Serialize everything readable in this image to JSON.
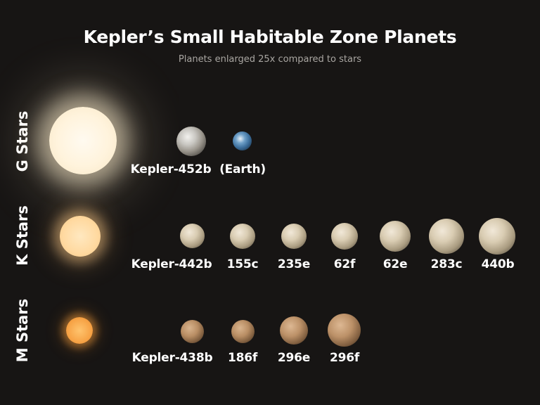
{
  "title": "Kepler’s Small Habitable Zone Planets",
  "subtitle": "Planets enlarged 25x compared to stars",
  "rows": [
    {
      "label": "G Stars",
      "star_color": "#fff3dc",
      "star_glow": "#fff0cf",
      "planets": [
        {
          "label": "Kepler-452b",
          "look": "rocky"
        },
        {
          "label": "(Earth)",
          "look": "earth"
        }
      ]
    },
    {
      "label": "K Stars",
      "star_color": "#ffd9a0",
      "star_glow": "#ffcf8c",
      "planets": [
        {
          "label": "Kepler-442b",
          "look": "tan"
        },
        {
          "label": "155c",
          "look": "tan"
        },
        {
          "label": "235e",
          "look": "tan"
        },
        {
          "label": "62f",
          "look": "tan"
        },
        {
          "label": "62e",
          "look": "tan"
        },
        {
          "label": "283c",
          "look": "tan"
        },
        {
          "label": "440b",
          "look": "tan"
        }
      ]
    },
    {
      "label": "M Stars",
      "star_color": "#f7a447",
      "star_glow": "#f6a03e",
      "planets": [
        {
          "label": "Kepler-438b",
          "look": "brown"
        },
        {
          "label": "186f",
          "look": "brown"
        },
        {
          "label": "296e",
          "look": "brown"
        },
        {
          "label": "296f",
          "look": "brown"
        }
      ]
    }
  ]
}
